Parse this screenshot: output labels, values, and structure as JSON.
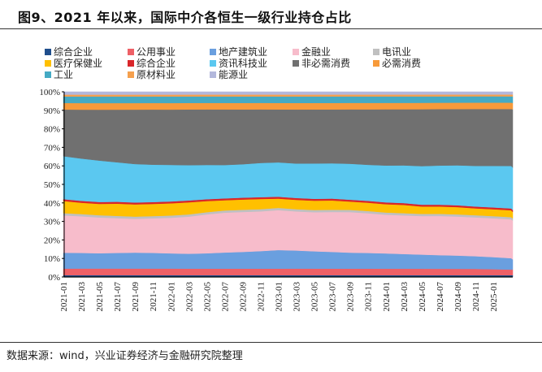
{
  "title": "图9、2021 年以来，国际中介各恒生一级行业持仓占比",
  "source": "数据来源：wind，兴业证券经济与金融研究院整理",
  "chart_data": {
    "type": "area",
    "stacked": true,
    "normalized_percent": true,
    "title": "图9、2021 年以来，国际中介各恒生一级行业持仓占比",
    "xlabel": "",
    "ylabel": "",
    "ylim": [
      0,
      100
    ],
    "y_ticks": [
      "0%",
      "10%",
      "20%",
      "30%",
      "40%",
      "50%",
      "60%",
      "70%",
      "80%",
      "90%",
      "100%"
    ],
    "x_tick_labels": [
      "2021-01",
      "2021-03",
      "2021-05",
      "2021-07",
      "2021-09",
      "2021-11",
      "2022-01",
      "2022-03",
      "2022-05",
      "2022-07",
      "2022-09",
      "2022-11",
      "2023-01",
      "2023-03",
      "2023-05",
      "2023-07",
      "2023-09",
      "2023-11",
      "2024-01",
      "2024-03",
      "2024-05",
      "2024-07",
      "2024-09",
      "2024-11",
      "2025-01"
    ],
    "x": [
      "2021-01",
      "2021-03",
      "2021-05",
      "2021-07",
      "2021-09",
      "2021-11",
      "2022-01",
      "2022-03",
      "2022-05",
      "2022-07",
      "2022-09",
      "2022-11",
      "2023-01",
      "2023-03",
      "2023-05",
      "2023-07",
      "2023-09",
      "2023-11",
      "2024-01",
      "2024-03",
      "2024-05",
      "2024-07",
      "2024-09",
      "2024-11",
      "2025-01",
      "2025-02",
      "2025-03"
    ],
    "legend_position": "top",
    "series": [
      {
        "name": "综合企业",
        "color": "#1f4e8c",
        "values": [
          1,
          1,
          1,
          1,
          1,
          1,
          1,
          1,
          1,
          1,
          1,
          1,
          1,
          1,
          1,
          1,
          1,
          1,
          1,
          1,
          1,
          1,
          1,
          1,
          1,
          1,
          1
        ]
      },
      {
        "name": "公用事业",
        "color": "#ee6066",
        "values": [
          3.5,
          3.5,
          3.5,
          3.5,
          3.5,
          3.5,
          3.5,
          3.5,
          3.5,
          3.5,
          3.5,
          3.5,
          3.5,
          3.5,
          3.5,
          3.5,
          3.5,
          3.5,
          3.5,
          3.5,
          3.5,
          3.5,
          3.5,
          3.5,
          3.3,
          3.1,
          3.0
        ]
      },
      {
        "name": "地产建筑业",
        "color": "#6a9fdf",
        "values": [
          8.5,
          8.3,
          8.1,
          8.3,
          8.5,
          8.4,
          8.1,
          8,
          8.3,
          8.7,
          9,
          9.5,
          10,
          9.7,
          9.3,
          9,
          8.7,
          8.5,
          8.3,
          8,
          7.7,
          7.5,
          7.3,
          7,
          6.7,
          6.3,
          5.5
        ]
      },
      {
        "name": "金融业",
        "color": "#f7bccb",
        "values": [
          20,
          19.5,
          19,
          18.5,
          18,
          18.5,
          19,
          20,
          21,
          21.5,
          21.5,
          21.5,
          21.5,
          21,
          21,
          21.5,
          22,
          21.5,
          21,
          21,
          21,
          21.5,
          21.5,
          21.5,
          21.5,
          21.5,
          21
        ]
      },
      {
        "name": "电讯业",
        "color": "#c0c0c0",
        "values": [
          1.2,
          1.2,
          1.2,
          1.2,
          1.2,
          1.2,
          1.2,
          1.2,
          1.2,
          1.2,
          1.2,
          1.2,
          1.2,
          1.2,
          1.2,
          1.2,
          1.2,
          1.2,
          1.2,
          1.2,
          1.2,
          1.2,
          1.2,
          1.2,
          1.2,
          1.2,
          1.2
        ]
      },
      {
        "name": "医疗保健业",
        "color": "#ffc000",
        "values": [
          6.5,
          6,
          6,
          6.5,
          6.5,
          6.5,
          6.5,
          6.5,
          6,
          5.5,
          5.5,
          5.5,
          5,
          5,
          5,
          5,
          4.5,
          4.5,
          4.5,
          4.5,
          4,
          4,
          4,
          3.8,
          3.8,
          3.8,
          3.5
        ]
      },
      {
        "name": "综合企业",
        "color": "#d9262a",
        "values": [
          1,
          1,
          1,
          1,
          1,
          1,
          1,
          1,
          1,
          1,
          1,
          1,
          1,
          1,
          1,
          1,
          1,
          1,
          1,
          1,
          1,
          1,
          1,
          1,
          1,
          1,
          1
        ]
      },
      {
        "name": "资讯科技业",
        "color": "#5bc8f0",
        "values": [
          23,
          22.5,
          22,
          21,
          20.5,
          20,
          19.5,
          19,
          18.5,
          18,
          18,
          18.5,
          18.5,
          18.5,
          19,
          19,
          19.5,
          19.5,
          20,
          20.5,
          21,
          21.5,
          22,
          22.5,
          23,
          23.5,
          23
        ]
      },
      {
        "name": "非必需消费",
        "color": "#707070",
        "values": [
          25,
          26,
          27,
          28,
          29,
          29.5,
          29.5,
          30,
          30,
          30,
          29.5,
          29,
          28.5,
          29,
          29,
          29,
          29.5,
          30,
          30.5,
          30.5,
          31,
          31,
          31,
          31.5,
          31.5,
          31.5,
          31.5
        ]
      },
      {
        "name": "必需消费",
        "color": "#f79a3a",
        "values": [
          3.5,
          3.5,
          3.5,
          3.5,
          3.5,
          3.5,
          3.5,
          3.5,
          3.5,
          3.5,
          3.5,
          3.5,
          3.5,
          3.5,
          3.5,
          3.5,
          3.5,
          3.5,
          3.5,
          3.5,
          3.5,
          3.5,
          3.5,
          3.5,
          3.5,
          3.5,
          3.5
        ]
      },
      {
        "name": "工业",
        "color": "#45aac4",
        "values": [
          3.5,
          3.5,
          3.5,
          3.5,
          3.5,
          3.5,
          3.5,
          3.5,
          3.5,
          3.5,
          3.5,
          3.5,
          3.5,
          3.5,
          3.5,
          3.5,
          3.5,
          3.5,
          3.5,
          3.5,
          3.5,
          3.5,
          3.5,
          3.5,
          3.5,
          3.5,
          3.5
        ]
      },
      {
        "name": "原材料业",
        "color": "#f5a04e",
        "values": [
          1,
          1,
          1,
          1,
          1,
          1,
          1,
          1,
          1,
          1,
          1,
          1,
          1,
          1,
          1,
          1,
          1,
          1,
          1,
          1,
          1,
          1,
          1,
          1,
          1,
          1,
          1
        ]
      },
      {
        "name": "能源业",
        "color": "#b3b8dc",
        "values": [
          1.5,
          1.5,
          1.5,
          1.5,
          1.5,
          1.5,
          1.5,
          1.5,
          1.5,
          1.5,
          1.5,
          1.5,
          1.5,
          1.5,
          1.5,
          1.5,
          1.5,
          1.5,
          1.5,
          1.5,
          1.5,
          1.5,
          1.5,
          1.5,
          1.5,
          1.5,
          1.5
        ]
      }
    ]
  }
}
